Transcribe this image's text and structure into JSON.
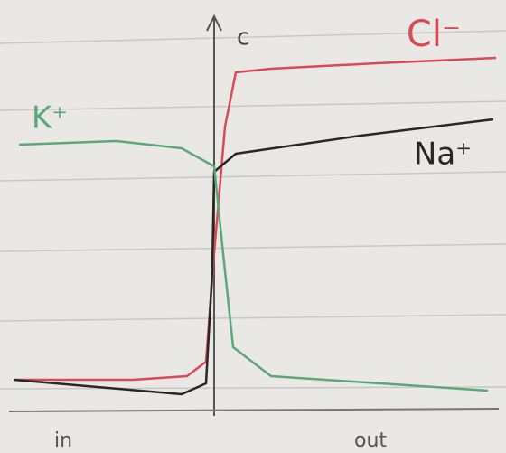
{
  "chart_data": {
    "type": "line",
    "ylabel": "c",
    "x_region_labels": [
      "in",
      "out"
    ],
    "xlim": [
      -7.5,
      10.5
    ],
    "ylim": [
      0,
      10
    ],
    "series": [
      {
        "name": "Cl⁻",
        "color": "#d94a55",
        "x": [
          -7.4,
          -3,
          -1,
          -0.3,
          0,
          0.4,
          0.8,
          2.1,
          6,
          10.4
        ],
        "values": [
          0.5,
          0.5,
          0.6,
          1.0,
          4,
          7.5,
          9,
          9.1,
          9.25,
          9.4
        ]
      },
      {
        "name": "Na⁺",
        "color": "#2a2624",
        "x": [
          -7.4,
          -1.2,
          -0.3,
          -0.07,
          0,
          0.8,
          5.4,
          10.3
        ],
        "values": [
          0.5,
          0.1,
          0.4,
          3.5,
          6.25,
          6.75,
          7.25,
          7.7
        ]
      },
      {
        "name": "K⁺",
        "color": "#5aa87a",
        "x": [
          -7.2,
          -3.6,
          -1.2,
          0,
          0.4,
          0.7,
          2.1,
          10.1
        ],
        "values": [
          7,
          7.1,
          6.9,
          6.4,
          3.5,
          1.4,
          0.6,
          0.2
        ]
      }
    ]
  }
}
